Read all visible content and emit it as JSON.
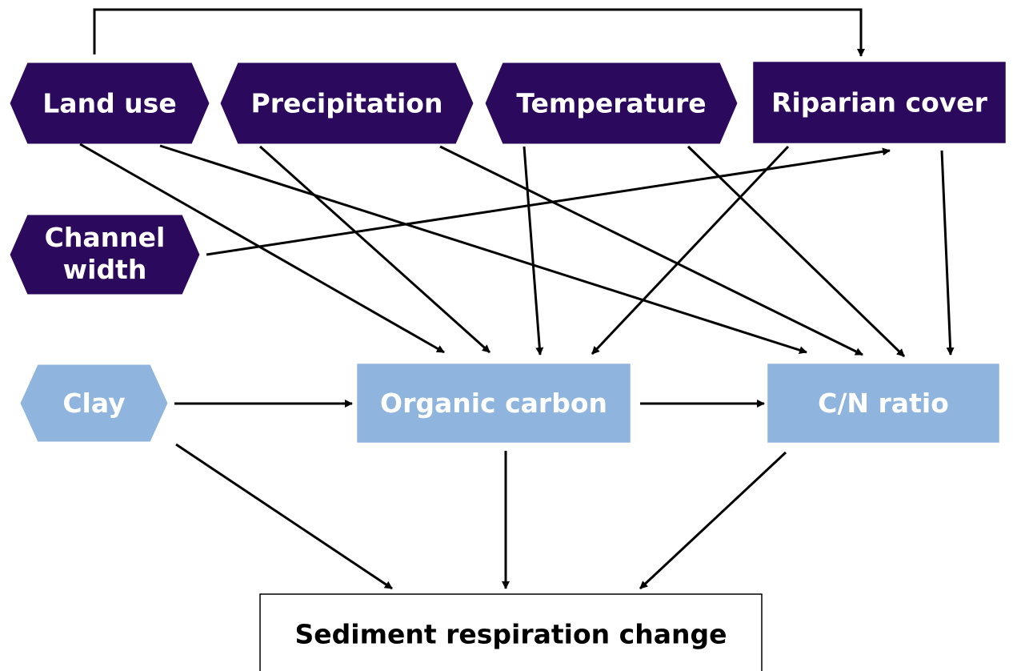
{
  "nodes": [
    {
      "label": "Land use"
    },
    {
      "label": "Precipitation"
    },
    {
      "label": "Temperature"
    },
    {
      "label": "Riparian cover"
    },
    {
      "label": [
        "Channel",
        "width"
      ]
    },
    {
      "label": "Clay"
    },
    {
      "label": "Organic carbon"
    },
    {
      "label": "C/N ratio"
    },
    {
      "label": "Sediment respiration change"
    }
  ]
}
